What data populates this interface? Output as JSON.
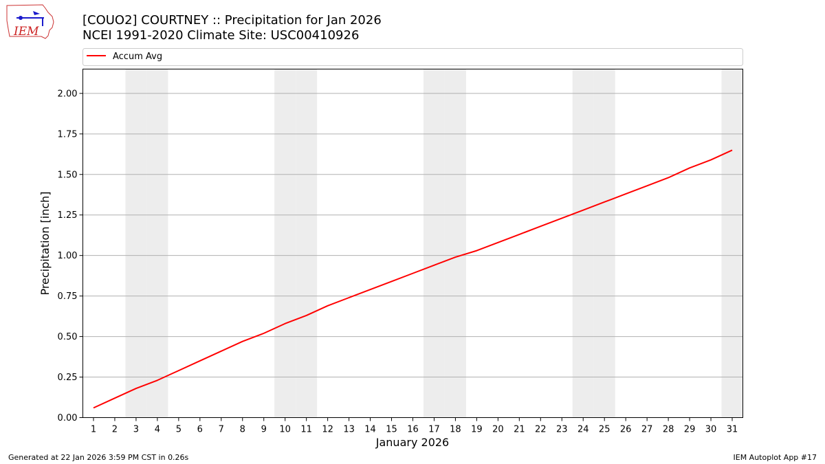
{
  "logo": {
    "text": "IEM"
  },
  "footer": {
    "generated": "Generated at 22 Jan 2026 3:59 PM CST in 0.26s",
    "app": "IEM Autoplot App #17"
  },
  "colors": {
    "series": "#ff0000",
    "weekend_band": "#ededed",
    "grid": "#b0b0b0"
  },
  "chart_data": {
    "type": "line",
    "title": "[COUO2] COURTNEY :: Precipitation for Jan 2026",
    "subtitle": "NCEI 1991-2020 Climate Site: USC00410926",
    "xlabel": "January 2026",
    "ylabel": "Precipitation [inch]",
    "x": [
      1,
      2,
      3,
      4,
      5,
      6,
      7,
      8,
      9,
      10,
      11,
      12,
      13,
      14,
      15,
      16,
      17,
      18,
      19,
      20,
      21,
      22,
      23,
      24,
      25,
      26,
      27,
      28,
      29,
      30,
      31
    ],
    "xlim": [
      0.5,
      31.5
    ],
    "ylim": [
      0,
      2.15
    ],
    "yticks": [
      "0.00",
      "0.25",
      "0.50",
      "0.75",
      "1.00",
      "1.25",
      "1.50",
      "1.75",
      "2.00"
    ],
    "grid": "horizontal",
    "legend_position": "top",
    "weekend_days": [
      3,
      4,
      10,
      11,
      17,
      18,
      24,
      25,
      31
    ],
    "series": [
      {
        "name": "Accum Avg",
        "color": "#ff0000",
        "values": [
          0.06,
          0.12,
          0.18,
          0.23,
          0.29,
          0.35,
          0.41,
          0.47,
          0.52,
          0.58,
          0.63,
          0.69,
          0.74,
          0.79,
          0.84,
          0.89,
          0.94,
          0.99,
          1.03,
          1.08,
          1.13,
          1.18,
          1.23,
          1.28,
          1.33,
          1.38,
          1.43,
          1.48,
          1.54,
          1.59,
          1.65
        ]
      }
    ]
  }
}
